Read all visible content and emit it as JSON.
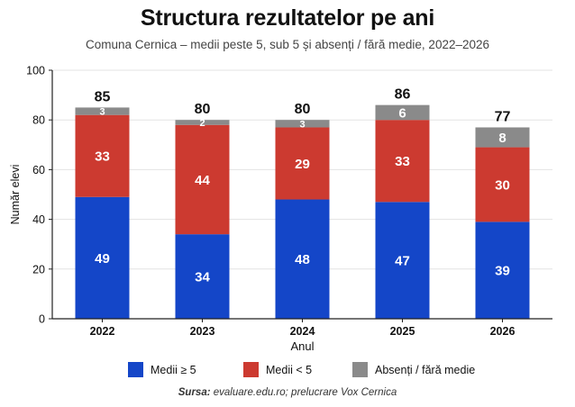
{
  "title": "Structura rezultatelor pe ani",
  "subtitle": "Comuna Cernica – medii peste 5, sub 5 și absenți / fără medie, 2022–2026",
  "source": {
    "label": "Sursa:",
    "text": " evaluare.edu.ro; prelucrare Vox Cernica"
  },
  "colors": {
    "above5": "#1446c8",
    "below5": "#cc3a30",
    "absent": "#8a8a8a",
    "grid": "#e3e3e3",
    "axis": "#222222"
  },
  "chart_data": {
    "type": "bar",
    "stacked": true,
    "categories": [
      "2022",
      "2023",
      "2024",
      "2025",
      "2026"
    ],
    "series": [
      {
        "name": "Medii ≥ 5",
        "color": "#1446c8",
        "values": [
          49,
          34,
          48,
          47,
          39
        ]
      },
      {
        "name": "Medii < 5",
        "color": "#cc3a30",
        "values": [
          33,
          44,
          29,
          33,
          30
        ]
      },
      {
        "name": "Absenți / fără medie",
        "color": "#8a8a8a",
        "values": [
          3,
          2,
          3,
          6,
          8
        ]
      }
    ],
    "totals": [
      85,
      80,
      80,
      86,
      77
    ],
    "xlabel": "Anul",
    "ylabel": "Număr elevi",
    "ylim": [
      0,
      100
    ],
    "yticks": [
      0,
      20,
      40,
      60,
      80,
      100
    ],
    "grid": true,
    "legend_position": "bottom"
  }
}
